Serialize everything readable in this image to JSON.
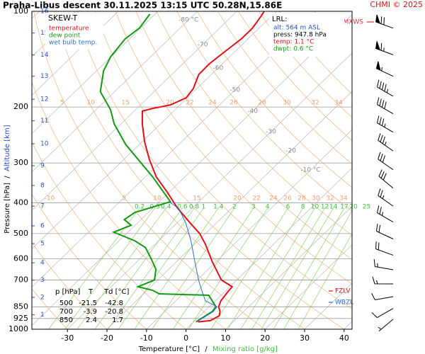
{
  "chart_data": {
    "type": "skewt",
    "title": "Praha-Libus   descent   30.11.2025 13:15 UTC   50.28N,15.86E",
    "credit": "CHMI © 2025",
    "diagram_name": "SKEW-T",
    "y_label": "Pressure [hPa]",
    "y2_label": "Altitude [km]",
    "x_label": "Temperature [°C]",
    "x2_label": "Mixing ratio [g/kg]",
    "label_separator": "/",
    "xlim": [
      -39,
      42
    ],
    "xticks": [
      -30,
      -20,
      -10,
      0,
      10,
      20,
      30,
      40
    ],
    "ylim": [
      1000,
      100
    ],
    "yticks": [
      100,
      200,
      300,
      400,
      500,
      600,
      700,
      850,
      925,
      1000
    ],
    "log_y": true,
    "grid": true,
    "altitude_ticks": [
      {
        "km": 1,
        "p": 901
      },
      {
        "km": 2,
        "p": 794
      },
      {
        "km": 3,
        "p": 701
      },
      {
        "km": 4,
        "p": 618
      },
      {
        "km": 5,
        "p": 538
      },
      {
        "km": 6,
        "p": 473
      },
      {
        "km": 7,
        "p": 410
      },
      {
        "km": 8,
        "p": 353
      },
      {
        "km": 9,
        "p": 306
      },
      {
        "km": 10,
        "p": 261
      },
      {
        "km": 11,
        "p": 221
      },
      {
        "km": 12,
        "p": 189
      },
      {
        "km": 13,
        "p": 160
      },
      {
        "km": 14,
        "p": 137
      },
      {
        "km": 15,
        "p": 117
      },
      {
        "km": 16,
        "p": 100
      }
    ],
    "series": [
      {
        "name": "temperature",
        "color": "#e0101a",
        "p": [
          948,
          940,
          907,
          880,
          850,
          814,
          762,
          735,
          700,
          614,
          540,
          500,
          463,
          414,
          368,
          332,
          292,
          257,
          226,
          206,
          202,
          197,
          187,
          175,
          158,
          146,
          133,
          122,
          113,
          103,
          100
        ],
        "values": [
          1.1,
          3.9,
          4.9,
          4.0,
          2.4,
          1.4,
          0.8,
          0.6,
          -3.9,
          -10.9,
          -17.3,
          -21.5,
          -26.7,
          -34.0,
          -40.9,
          -47.2,
          -53.6,
          -59.4,
          -64.6,
          -67.9,
          -66.0,
          -62.4,
          -60.3,
          -60.9,
          -63.2,
          -63.3,
          -62.5,
          -61.7,
          -61.7,
          -62.7,
          -63.1
        ]
      },
      {
        "name": "dew point",
        "color": "#129912",
        "p": [
          948,
          880,
          850,
          782,
          774,
          754,
          735,
          700,
          647,
          599,
          554,
          527,
          495,
          471,
          452,
          429,
          397,
          332,
          277,
          262,
          226,
          204,
          179,
          154,
          139,
          122,
          113,
          102
        ],
        "values": [
          0.6,
          2.0,
          1.7,
          -3.1,
          -16.0,
          -18.7,
          -23.2,
          -20.8,
          -23.3,
          -27.3,
          -31.5,
          -36.0,
          -43.6,
          -41.0,
          -44.2,
          -43.4,
          -37.2,
          -48.1,
          -59.9,
          -63.5,
          -71.7,
          -76.3,
          -83.6,
          -88.2,
          -90.1,
          -91.1,
          -90.3,
          -91.3
        ]
      },
      {
        "name": "wet bulb temp.",
        "color": "#2a6fc9",
        "p": [
          948,
          880,
          850,
          814,
          754,
          698,
          614,
          527,
          463,
          418,
          397
        ],
        "values": [
          0.8,
          2.3,
          2.0,
          -2.5,
          -6.2,
          -9.8,
          -15.3,
          -21.8,
          -27.8,
          -33.2,
          -37.5
        ]
      }
    ],
    "isotherm_labels": [
      {
        "value": -80,
        "label": "-80 °C"
      },
      -70,
      -60,
      -50,
      -40,
      -30,
      -20,
      {
        "value": -10,
        "label": "-10 °C"
      }
    ],
    "mixing_ratio_labels": [
      0.2,
      0.3,
      0.4,
      0.6,
      0.8,
      1,
      1.4,
      2,
      3,
      4,
      6,
      8,
      10,
      12,
      14,
      17,
      20,
      25
    ],
    "adiabat_labels_upper": [
      5,
      10,
      15,
      20,
      22,
      24,
      26,
      28,
      30,
      32,
      34
    ],
    "adiabat_labels_lower": [
      -10,
      5,
      10,
      15,
      20,
      22,
      24,
      26,
      28,
      30,
      32,
      34
    ],
    "levels": [
      {
        "label": "MXWS",
        "p": 108,
        "color": "#e0303a"
      },
      {
        "label": "FZLV",
        "p": 758,
        "color": "#d01010"
      },
      {
        "label": "WBZL",
        "p": 823,
        "color": "#2a6fc9"
      }
    ],
    "winds": [
      {
        "p": 113,
        "dir": 290,
        "speed": 70
      },
      {
        "p": 137,
        "dir": 290,
        "speed": 65
      },
      {
        "p": 160,
        "dir": 295,
        "speed": 55
      },
      {
        "p": 185,
        "dir": 300,
        "speed": 45
      },
      {
        "p": 210,
        "dir": 300,
        "speed": 40
      },
      {
        "p": 240,
        "dir": 300,
        "speed": 35
      },
      {
        "p": 275,
        "dir": 305,
        "speed": 35
      },
      {
        "p": 315,
        "dir": 305,
        "speed": 30
      },
      {
        "p": 360,
        "dir": 310,
        "speed": 30
      },
      {
        "p": 410,
        "dir": 305,
        "speed": 25
      },
      {
        "p": 460,
        "dir": 300,
        "speed": 25
      },
      {
        "p": 520,
        "dir": 295,
        "speed": 20
      },
      {
        "p": 585,
        "dir": 290,
        "speed": 20
      },
      {
        "p": 650,
        "dir": 280,
        "speed": 15
      },
      {
        "p": 720,
        "dir": 270,
        "speed": 15
      },
      {
        "p": 790,
        "dir": 260,
        "speed": 10
      },
      {
        "p": 860,
        "dir": 240,
        "speed": 10
      },
      {
        "p": 930,
        "dir": 230,
        "speed": 5
      }
    ],
    "surface_info": {
      "title": "LRL:",
      "alt": "alt: 564 m ASL",
      "press": "press: 947.8 hPa",
      "temp": "temp: 1.1 °C",
      "dwpt": "dwpt: 0.6 °C"
    },
    "table": {
      "header": [
        "p [hPa]",
        "T",
        "Td [°C]"
      ],
      "rows": [
        [
          "500",
          "-21.5",
          "-42.8"
        ],
        [
          "700",
          "-3.9",
          "-20.8"
        ],
        [
          "850",
          "2.4",
          "1.7"
        ]
      ]
    }
  }
}
